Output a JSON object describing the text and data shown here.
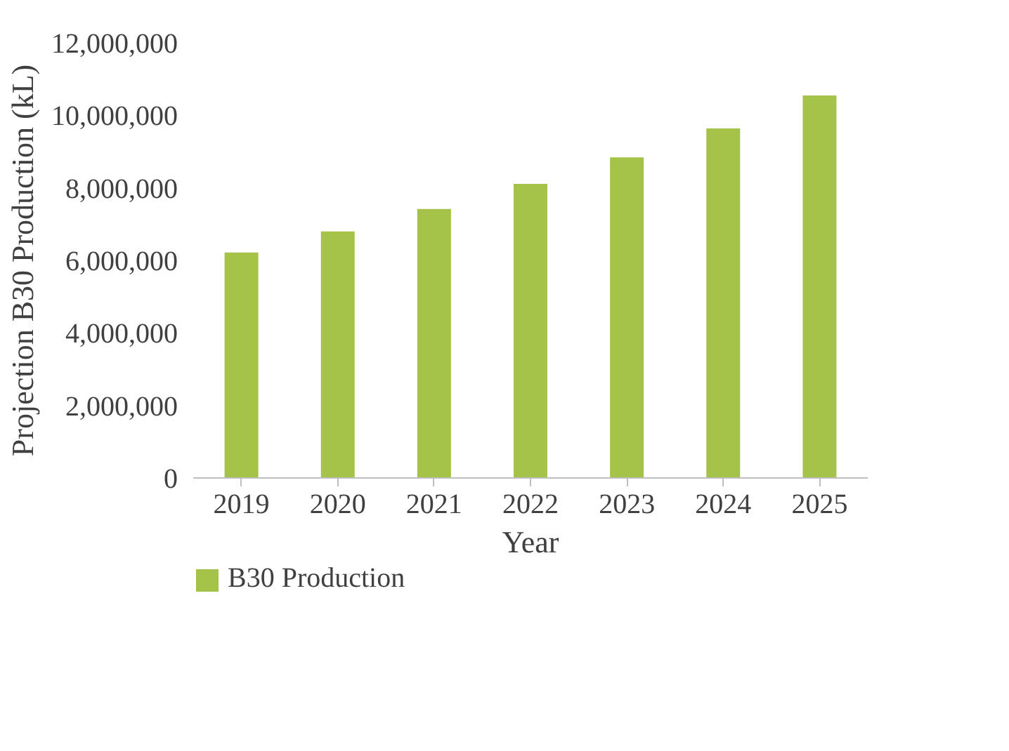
{
  "chart_data": {
    "type": "bar",
    "xlabel": "Year",
    "ylabel": "Projection B30 Production (kL)",
    "categories": [
      "2019",
      "2020",
      "2021",
      "2022",
      "2023",
      "2024",
      "2025"
    ],
    "series": [
      {
        "name": "B30 Production",
        "color": "#a5c249",
        "values": [
          6220000,
          6800000,
          7420000,
          8110000,
          8840000,
          9640000,
          10550000
        ]
      }
    ],
    "ylim": [
      0,
      12000000
    ],
    "yticks": [
      0,
      {
        "value": 2000000,
        "label": "2,000,000"
      },
      {
        "value": 4000000,
        "label": "4,000,000"
      },
      {
        "value": 6000000,
        "label": "6,000,000"
      },
      {
        "value": 8000000,
        "label": "8,000,000"
      },
      {
        "value": 10000000,
        "label": "10,000,000"
      },
      {
        "value": 12000000,
        "label": "12,000,000"
      }
    ],
    "grid": false,
    "legend": "bottom"
  }
}
